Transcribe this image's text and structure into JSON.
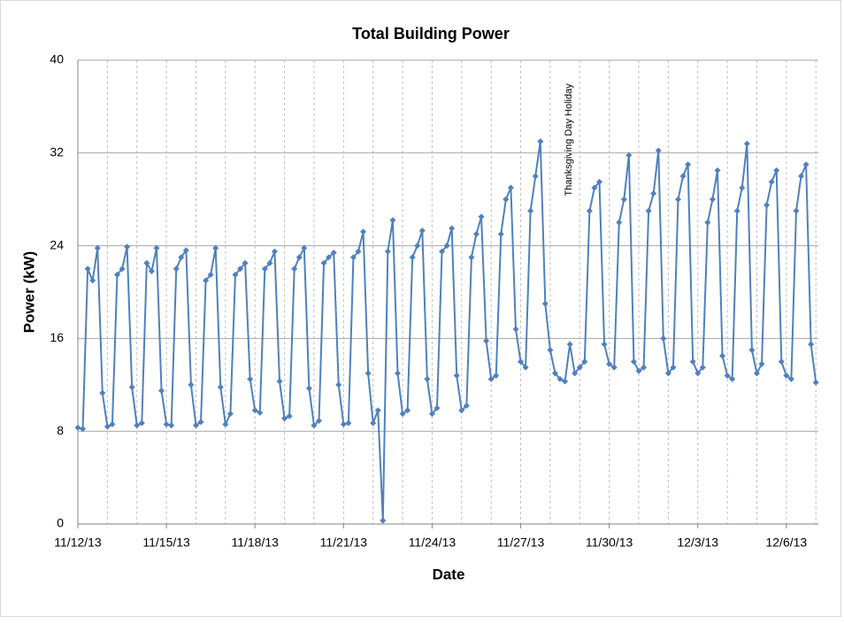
{
  "chart_data": {
    "type": "line",
    "title": "Total Building Power",
    "x_label": "Date",
    "y_label": "Power (kW)",
    "annotation": "Thanksgiving Day Holiday",
    "xlim": [
      0,
      602
    ],
    "xticks": [
      {
        "value": 0,
        "label": "11/12/13"
      },
      {
        "value": 72,
        "label": "11/15/13"
      },
      {
        "value": 144,
        "label": "11/18/13"
      },
      {
        "value": 216,
        "label": "11/21/13"
      },
      {
        "value": 288,
        "label": "11/24/13"
      },
      {
        "value": 360,
        "label": "11/27/13"
      },
      {
        "value": 432,
        "label": "11/30/13"
      },
      {
        "value": 504,
        "label": "12/3/13"
      },
      {
        "value": 576,
        "label": "12/6/13"
      }
    ],
    "xminorticks": [
      24,
      48,
      96,
      120,
      168,
      192,
      240,
      264,
      312,
      336,
      384,
      408,
      456,
      480,
      528,
      552,
      600
    ],
    "ylim": [
      0,
      40
    ],
    "yticks": [
      0,
      8,
      16,
      24,
      32,
      40
    ],
    "grid": true,
    "x": [
      0,
      4,
      8,
      12,
      16,
      20,
      24,
      28,
      32,
      36,
      40,
      44,
      48,
      52,
      56,
      60,
      64,
      68,
      72,
      76,
      80,
      84,
      88,
      92,
      96,
      100,
      104,
      108,
      112,
      116,
      120,
      124,
      128,
      132,
      136,
      140,
      144,
      148,
      152,
      156,
      160,
      164,
      168,
      172,
      176,
      180,
      184,
      188,
      192,
      196,
      200,
      204,
      208,
      212,
      216,
      220,
      224,
      228,
      232,
      236,
      240,
      244,
      248,
      252,
      256,
      260,
      264,
      268,
      272,
      276,
      280,
      284,
      288,
      292,
      296,
      300,
      304,
      308,
      312,
      316,
      320,
      324,
      328,
      332,
      336,
      340,
      344,
      348,
      352,
      356,
      360,
      364,
      368,
      372,
      376,
      380,
      384,
      388,
      392,
      396,
      400,
      404,
      408,
      412,
      416,
      420,
      424,
      428,
      432,
      436,
      440,
      444,
      448,
      452,
      456,
      460,
      464,
      468,
      472,
      476,
      480,
      484,
      488,
      492,
      496,
      500,
      504,
      508,
      512,
      516,
      520,
      524,
      528,
      532,
      536,
      540,
      544,
      548,
      552,
      556,
      560,
      564,
      568,
      572,
      576,
      580,
      584,
      588,
      592,
      596,
      600
    ],
    "series": [
      {
        "name": "Total Building Power",
        "color": "#4f81bd",
        "values": [
          8.3,
          8.2,
          22,
          21,
          23.8,
          11.3,
          8.4,
          8.6,
          21.5,
          22,
          23.9,
          11.8,
          8.5,
          8.7,
          22.5,
          21.8,
          23.8,
          11.5,
          8.6,
          8.5,
          22,
          23,
          23.6,
          12,
          8.5,
          8.8,
          21,
          21.5,
          23.8,
          11.8,
          8.6,
          9.5,
          21.5,
          22,
          22.5,
          12.5,
          9.8,
          9.6,
          22,
          22.5,
          23.5,
          12.3,
          9.1,
          9.3,
          22,
          23,
          23.8,
          11.7,
          8.5,
          8.9,
          22.5,
          23,
          23.4,
          12,
          8.6,
          8.7,
          23,
          23.5,
          25.2,
          13,
          8.7,
          9.8,
          0.3,
          23.5,
          26.2,
          13,
          9.5,
          9.8,
          23,
          24,
          25.3,
          12.5,
          9.5,
          10,
          23.5,
          24,
          25.5,
          12.8,
          9.8,
          10.2,
          23,
          25,
          26.5,
          15.8,
          12.5,
          12.8,
          25,
          28,
          29,
          16.8,
          14,
          13.5,
          27,
          30,
          33,
          19,
          15,
          13,
          12.5,
          12.3,
          15.5,
          13,
          13.5,
          14,
          27,
          29,
          29.5,
          15.5,
          13.8,
          13.5,
          26,
          28,
          31.8,
          14,
          13.2,
          13.5,
          27,
          28.5,
          32.2,
          16,
          13,
          13.5,
          28,
          30,
          31,
          14,
          13,
          13.5,
          26,
          28,
          30.5,
          14.5,
          12.8,
          12.5,
          27,
          29,
          32.8,
          15,
          13,
          13.8,
          27.5,
          29.5,
          30.5,
          14,
          12.8,
          12.5,
          27,
          30,
          31,
          15.5,
          12.2
        ]
      }
    ]
  }
}
